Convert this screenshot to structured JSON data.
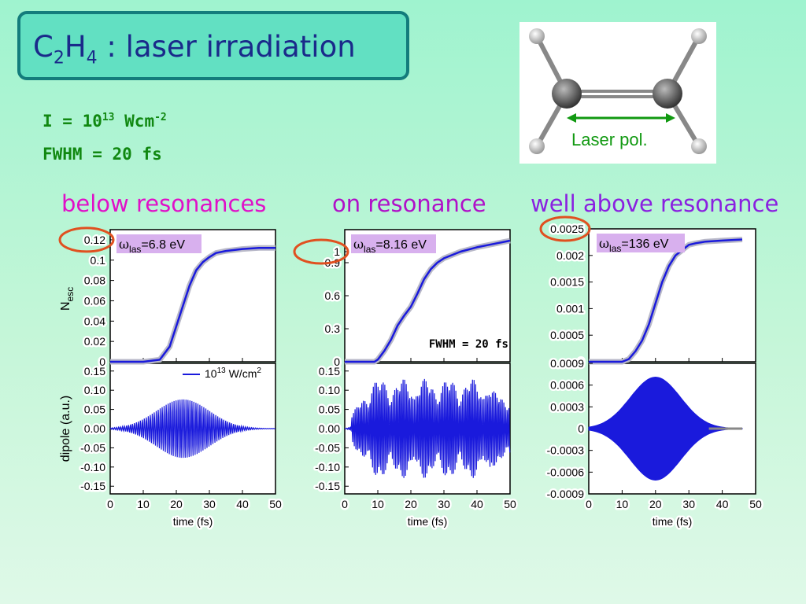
{
  "title": {
    "prefix": "C",
    "sub1": "2",
    "mid": "H",
    "sub2": "4",
    "rest": " : laser irradiation"
  },
  "params": {
    "intensity_prefix": "I = 10",
    "intensity_exp": "13",
    "intensity_unit": " Wcm",
    "intensity_unit_exp": "-2",
    "fwhm": "FWHM = 20 fs"
  },
  "molecule": {
    "laser_label": "Laser pol."
  },
  "conditions": [
    {
      "label": "below resonances",
      "color": "#e010c8"
    },
    {
      "label": "on resonance",
      "color": "#b010c8"
    },
    {
      "label": "well above resonance",
      "color": "#8a20e0"
    }
  ],
  "colors": {
    "curve": "#1a1adc",
    "highlight_circle": "#e05020",
    "omega_box": "#d8b0ee",
    "axis": "#000000"
  },
  "shared_labels": {
    "xlabel": "time (fs)",
    "nesc_ylabel": "N_esc",
    "dipole_ylabel": "dipole (a.u.)"
  },
  "chart_data": [
    {
      "type": "line",
      "title": "ω_las=6.8 eV",
      "xlabel": "",
      "ylabel": "N_esc",
      "x": [
        0,
        10,
        15,
        18,
        20,
        22,
        24,
        26,
        28,
        30,
        32,
        35,
        40,
        45,
        50
      ],
      "series": [
        {
          "values": [
            0,
            0,
            0.002,
            0.015,
            0.035,
            0.055,
            0.075,
            0.09,
            0.098,
            0.103,
            0.107,
            0.109,
            0.111,
            0.112,
            0.112
          ]
        }
      ],
      "xlim": [
        0,
        50
      ],
      "ylim": [
        0,
        0.13
      ],
      "yticks": [
        0,
        0.02,
        0.04,
        0.06,
        0.08,
        0.1,
        0.12
      ],
      "ytick_labels": [
        "0",
        "0.02",
        "0.04",
        "0.06",
        "0.08",
        "0.1",
        "0.12"
      ],
      "highlight_tick": "0.12"
    },
    {
      "type": "line",
      "title": "ω_las=8.16 eV",
      "annotation": "FWHM = 20 fs",
      "x": [
        0,
        9,
        10,
        12,
        14,
        16,
        18,
        20,
        22,
        24,
        26,
        28,
        30,
        35,
        40,
        45,
        50
      ],
      "series": [
        {
          "values": [
            0,
            0,
            0.02,
            0.1,
            0.2,
            0.33,
            0.42,
            0.5,
            0.62,
            0.75,
            0.84,
            0.9,
            0.94,
            1.0,
            1.04,
            1.07,
            1.1
          ]
        }
      ],
      "xlim": [
        0,
        50
      ],
      "ylim": [
        0,
        1.2
      ],
      "yticks": [
        0,
        0.3,
        0.6,
        0.9,
        1
      ],
      "ytick_labels": [
        "0",
        "0.3",
        "0.6",
        "0.9",
        "1"
      ],
      "highlight_tick": "1"
    },
    {
      "type": "line",
      "title": "ω_las=136 eV",
      "x": [
        0,
        10,
        12,
        14,
        16,
        18,
        20,
        22,
        24,
        26,
        28,
        30,
        32,
        35,
        40,
        46
      ],
      "series": [
        {
          "values": [
            0,
            0,
            5e-05,
            0.0002,
            0.0004,
            0.0007,
            0.0011,
            0.0015,
            0.0018,
            0.002,
            0.0021,
            0.0022,
            0.00223,
            0.00226,
            0.00228,
            0.0023
          ]
        }
      ],
      "xlim": [
        0,
        50
      ],
      "ylim": [
        0,
        0.0025
      ],
      "yticks": [
        0,
        0.0005,
        0.001,
        0.0015,
        0.002,
        0.0025
      ],
      "ytick_labels": [
        "0",
        "0.0005",
        "0.001",
        "0.0015",
        "0.002",
        "0.0025"
      ],
      "highlight_tick": "0.0025"
    },
    {
      "type": "line",
      "title": "",
      "legend": "10^13 W/cm^2",
      "xlabel": "time (fs)",
      "ylabel": "dipole (a.u.)",
      "signal": {
        "kind": "gaussian_oscillation",
        "center": 22,
        "amplitude": 0.08,
        "sigma": 8,
        "period": 0.6,
        "xrange": [
          0,
          50
        ]
      },
      "xlim": [
        0,
        50
      ],
      "ylim": [
        -0.17,
        0.17
      ],
      "yticks": [
        -0.15,
        -0.1,
        -0.05,
        0,
        0.05,
        0.1,
        0.15
      ],
      "ytick_labels": [
        "-0.15",
        "-0.10",
        "-0.05",
        "0.00",
        "0.05",
        "0.10",
        "0.15"
      ],
      "xticks": [
        0,
        10,
        20,
        30,
        40,
        50
      ]
    },
    {
      "type": "line",
      "title": "",
      "xlabel": "time (fs)",
      "signal": {
        "kind": "irregular_oscillation",
        "amplitude": 0.13,
        "period": 0.5,
        "xrange": [
          0,
          50
        ]
      },
      "xlim": [
        0,
        50
      ],
      "ylim": [
        -0.17,
        0.17
      ],
      "yticks": [
        -0.15,
        -0.1,
        -0.05,
        0,
        0.05,
        0.1,
        0.15
      ],
      "ytick_labels": [
        "-0.15",
        "-0.10",
        "-0.05",
        "0.00",
        "0.05",
        "0.10",
        "0.15"
      ],
      "xticks": [
        0,
        10,
        20,
        30,
        40,
        50
      ]
    },
    {
      "type": "line",
      "title": "",
      "xlabel": "time (fs)",
      "signal": {
        "kind": "gaussian_envelope_fill",
        "center": 20,
        "amplitude": 0.00071,
        "sigma": 7.5,
        "xrange": [
          0,
          50
        ]
      },
      "xlim": [
        0,
        50
      ],
      "ylim": [
        -0.0009,
        0.0009
      ],
      "yticks": [
        -0.0009,
        -0.0006,
        -0.0003,
        0,
        0.0003,
        0.0006,
        0.0009
      ],
      "ytick_labels": [
        "-0.0009",
        "-0.0006",
        "-0.0003",
        "0",
        "0.0003",
        "0.0006",
        "0.0009"
      ],
      "xticks": [
        0,
        10,
        20,
        30,
        40,
        50
      ]
    }
  ]
}
